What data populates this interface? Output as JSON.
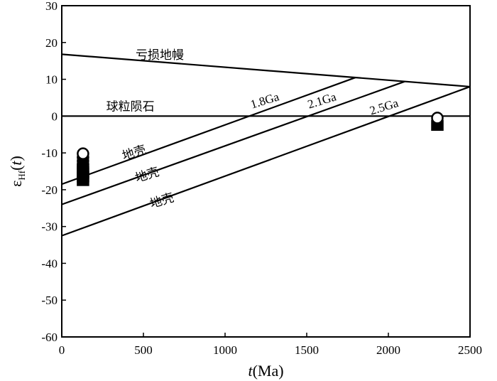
{
  "chart_data": {
    "type": "line",
    "xlabel": "t(Ma)",
    "xlabel_italic": "t",
    "xlabel_rest": "(Ma)",
    "ylabel_base": "ε",
    "ylabel_sub": "Hf",
    "ylabel_paren_open": "(",
    "ylabel_var": "t",
    "ylabel_paren_close": ")",
    "xlim": [
      0,
      2500
    ],
    "ylim": [
      -60,
      30
    ],
    "xticks": [
      0,
      500,
      1000,
      1500,
      2000,
      2500
    ],
    "yticks": [
      30,
      20,
      10,
      0,
      -10,
      -20,
      -30,
      -40,
      -50,
      -60
    ],
    "grid": false,
    "series": [
      {
        "name": "亏损地幔",
        "x": [
          0,
          2500
        ],
        "y": [
          16.8,
          8.0
        ]
      },
      {
        "name": "球粒陨石",
        "x": [
          0,
          2500
        ],
        "y": [
          0,
          0
        ]
      },
      {
        "name": "1.8Ga",
        "x": [
          0,
          1800
        ],
        "y": [
          -18.5,
          10.5
        ]
      },
      {
        "name": "2.1Ga",
        "x": [
          0,
          2100
        ],
        "y": [
          -24,
          9.4
        ]
      },
      {
        "name": "2.5Ga",
        "x": [
          0,
          2500
        ],
        "y": [
          -32.5,
          8.0
        ]
      }
    ],
    "annotations": [
      {
        "text": "亏损地幔",
        "x": 600,
        "y": 15.5,
        "angle": 0
      },
      {
        "text": "球粒陨石",
        "x": 420,
        "y": 1.5,
        "angle": 0
      },
      {
        "text": "1.8Ga",
        "x": 1250,
        "y": 3.2,
        "angle": -17
      },
      {
        "text": "2.1Ga",
        "x": 1600,
        "y": 3.2,
        "angle": -17
      },
      {
        "text": "2.5Ga",
        "x": 1980,
        "y": 1.5,
        "angle": -17
      },
      {
        "text": "地壳",
        "x": 450,
        "y": -11,
        "angle": -17
      },
      {
        "text": "地壳",
        "x": 530,
        "y": -17,
        "angle": -17
      },
      {
        "text": "地壳",
        "x": 620,
        "y": -24,
        "angle": -17
      }
    ],
    "points": [
      {
        "x": 130,
        "y": -17.5,
        "marker": "square",
        "fill": "#000000"
      },
      {
        "x": 130,
        "y": -16.5,
        "marker": "square",
        "fill": "#000000"
      },
      {
        "x": 130,
        "y": -15.5,
        "marker": "square",
        "fill": "#000000"
      },
      {
        "x": 130,
        "y": -14.5,
        "marker": "square",
        "fill": "#000000"
      },
      {
        "x": 130,
        "y": -13.8,
        "marker": "circle",
        "fill": "#000000"
      },
      {
        "x": 130,
        "y": -13.0,
        "marker": "circle",
        "fill": "#000000"
      },
      {
        "x": 130,
        "y": -12.2,
        "marker": "circle",
        "fill": "#000000"
      },
      {
        "x": 130,
        "y": -11.2,
        "marker": "circle",
        "fill": "#000000"
      },
      {
        "x": 130,
        "y": -10.2,
        "marker": "circle",
        "fill": "#ffffff"
      },
      {
        "x": 2300,
        "y": -2.5,
        "marker": "square",
        "fill": "#000000"
      },
      {
        "x": 2300,
        "y": -0.5,
        "marker": "circle",
        "fill": "#ffffff"
      }
    ]
  }
}
